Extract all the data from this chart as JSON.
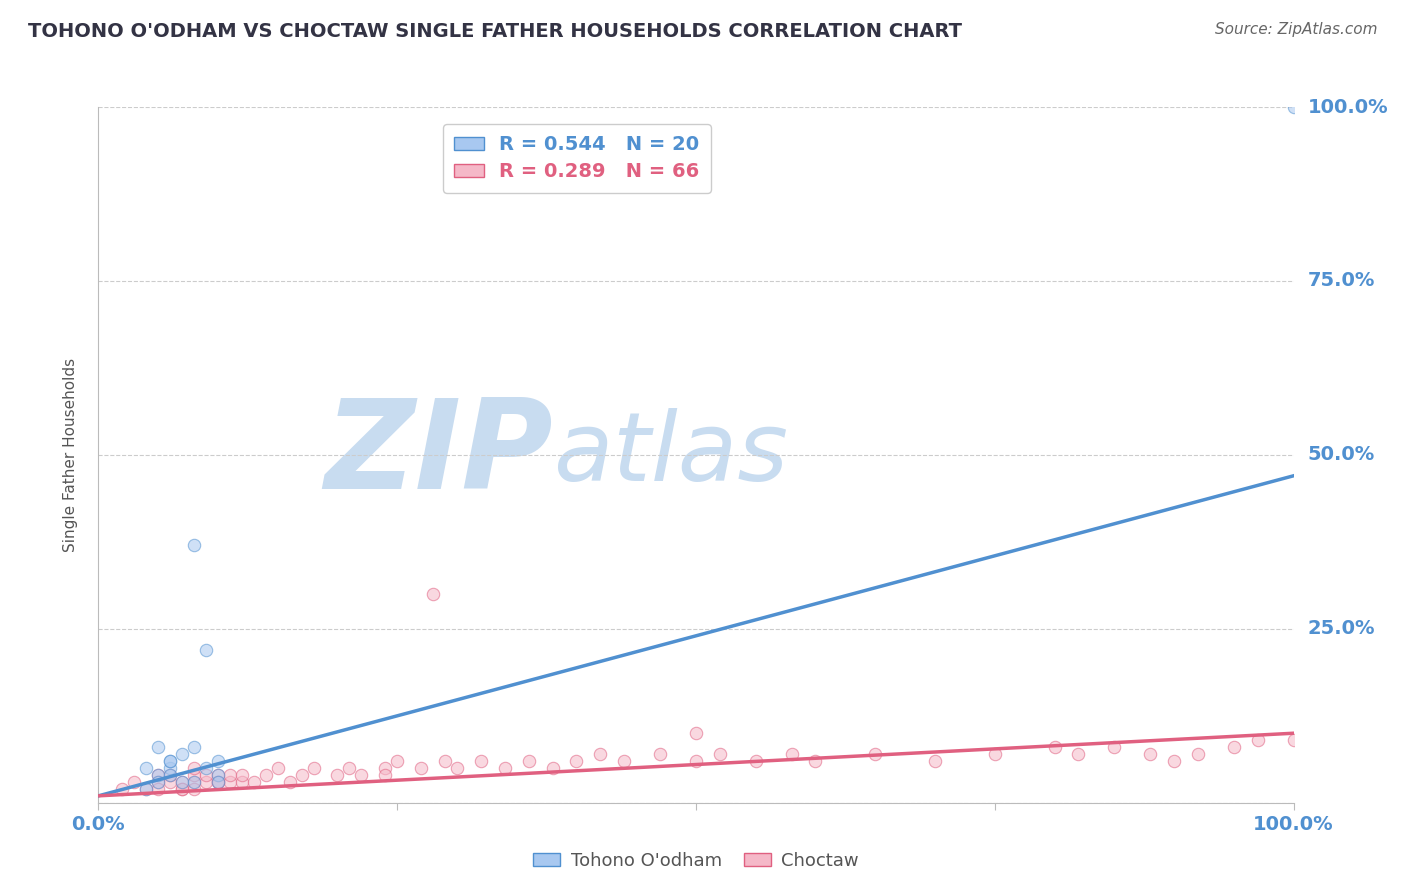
{
  "title": "TOHONO O'ODHAM VS CHOCTAW SINGLE FATHER HOUSEHOLDS CORRELATION CHART",
  "source": "Source: ZipAtlas.com",
  "ylabel": "Single Father Households",
  "xlim": [
    0.0,
    1.0
  ],
  "ylim": [
    0.0,
    1.0
  ],
  "blue_R": 0.544,
  "blue_N": 20,
  "pink_R": 0.289,
  "pink_N": 66,
  "blue_color": "#A8C8F0",
  "pink_color": "#F5B8C8",
  "blue_line_color": "#5090D0",
  "pink_line_color": "#E06080",
  "grid_color": "#CCCCCC",
  "background_color": "#FFFFFF",
  "watermark_ZIP": "ZIP",
  "watermark_atlas": "atlas",
  "watermark_ZIP_color": "#C8DCF0",
  "watermark_atlas_color": "#C8DCF0",
  "title_color": "#333344",
  "axis_label_color": "#5090D0",
  "ytick_labels_right": [
    "100.0%",
    "75.0%",
    "50.0%",
    "25.0%"
  ],
  "yticks_right": [
    1.0,
    0.75,
    0.5,
    0.25
  ],
  "tohono_scatter_x": [
    0.05,
    0.05,
    0.06,
    0.07,
    0.05,
    0.04,
    0.06,
    0.08,
    0.1,
    0.1,
    0.08,
    0.09,
    1.0,
    0.04,
    0.06,
    0.07,
    0.08,
    0.09,
    0.1,
    0.06
  ],
  "tohono_scatter_y": [
    0.08,
    0.04,
    0.05,
    0.03,
    0.03,
    0.02,
    0.06,
    0.03,
    0.04,
    0.03,
    0.37,
    0.22,
    1.0,
    0.05,
    0.06,
    0.07,
    0.08,
    0.05,
    0.06,
    0.04
  ],
  "choctaw_scatter_x": [
    0.02,
    0.03,
    0.04,
    0.05,
    0.05,
    0.06,
    0.06,
    0.07,
    0.07,
    0.08,
    0.08,
    0.08,
    0.09,
    0.09,
    0.1,
    0.1,
    0.11,
    0.11,
    0.12,
    0.12,
    0.13,
    0.14,
    0.15,
    0.16,
    0.17,
    0.18,
    0.2,
    0.21,
    0.22,
    0.24,
    0.24,
    0.25,
    0.27,
    0.29,
    0.3,
    0.32,
    0.34,
    0.36,
    0.38,
    0.4,
    0.42,
    0.44,
    0.47,
    0.5,
    0.52,
    0.55,
    0.58,
    0.6,
    0.65,
    0.7,
    0.75,
    0.8,
    0.82,
    0.85,
    0.88,
    0.9,
    0.92,
    0.95,
    0.97,
    1.0,
    0.28,
    0.5,
    0.1,
    0.08,
    0.05,
    0.07
  ],
  "choctaw_scatter_y": [
    0.02,
    0.03,
    0.02,
    0.04,
    0.03,
    0.03,
    0.04,
    0.02,
    0.03,
    0.03,
    0.04,
    0.02,
    0.03,
    0.04,
    0.03,
    0.04,
    0.03,
    0.04,
    0.03,
    0.04,
    0.03,
    0.04,
    0.05,
    0.03,
    0.04,
    0.05,
    0.04,
    0.05,
    0.04,
    0.05,
    0.04,
    0.06,
    0.05,
    0.06,
    0.05,
    0.06,
    0.05,
    0.06,
    0.05,
    0.06,
    0.07,
    0.06,
    0.07,
    0.06,
    0.07,
    0.06,
    0.07,
    0.06,
    0.07,
    0.06,
    0.07,
    0.08,
    0.07,
    0.08,
    0.07,
    0.06,
    0.07,
    0.08,
    0.09,
    0.09,
    0.3,
    0.1,
    0.03,
    0.05,
    0.02,
    0.02
  ],
  "blue_line_x": [
    0.0,
    1.0
  ],
  "blue_line_y": [
    0.01,
    0.47
  ],
  "pink_line_x": [
    0.0,
    1.0
  ],
  "pink_line_y": [
    0.01,
    0.1
  ],
  "legend_blue_label": "R = 0.544   N = 20",
  "legend_pink_label": "R = 0.289   N = 66",
  "bottom_legend_blue": "Tohono O'odham",
  "bottom_legend_pink": "Choctaw",
  "marker_size": 80,
  "marker_alpha": 0.55,
  "line_width": 2.5
}
